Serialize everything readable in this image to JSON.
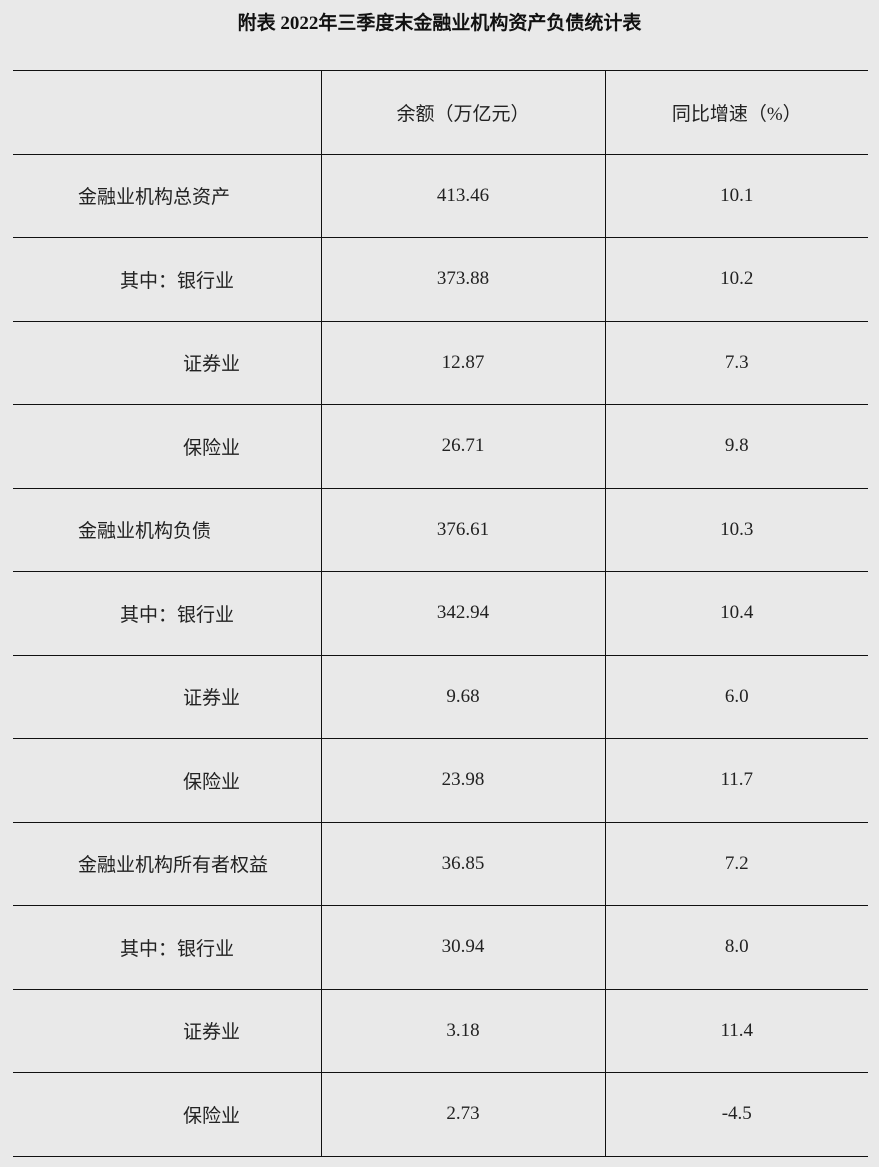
{
  "title": "附表 2022年三季度末金融业机构资产负债统计表",
  "headers": [
    "",
    "余额（万亿元）",
    "同比增速（%）"
  ],
  "rows": [
    {
      "label": "金融业机构总资产",
      "level": 0,
      "balance": "413.46",
      "growth": "10.1"
    },
    {
      "label": "其中：银行业",
      "level": 1,
      "balance": "373.88",
      "growth": "10.2"
    },
    {
      "label": "证券业",
      "level": 2,
      "balance": "12.87",
      "growth": "7.3"
    },
    {
      "label": "保险业",
      "level": 2,
      "balance": "26.71",
      "growth": "9.8"
    },
    {
      "label": "金融业机构负债",
      "level": 0,
      "balance": "376.61",
      "growth": "10.3"
    },
    {
      "label": "其中：银行业",
      "level": 1,
      "balance": "342.94",
      "growth": "10.4"
    },
    {
      "label": "证券业",
      "level": 2,
      "balance": "9.68",
      "growth": "6.0"
    },
    {
      "label": "保险业",
      "level": 2,
      "balance": "23.98",
      "growth": "11.7"
    },
    {
      "label": "金融业机构所有者权益",
      "level": 0,
      "balance": "36.85",
      "growth": "7.2"
    },
    {
      "label": "其中：银行业",
      "level": 1,
      "balance": "30.94",
      "growth": "8.0"
    },
    {
      "label": "证券业",
      "level": 2,
      "balance": "3.18",
      "growth": "11.4"
    },
    {
      "label": "保险业",
      "level": 2,
      "balance": "2.73",
      "growth": "-4.5"
    }
  ]
}
